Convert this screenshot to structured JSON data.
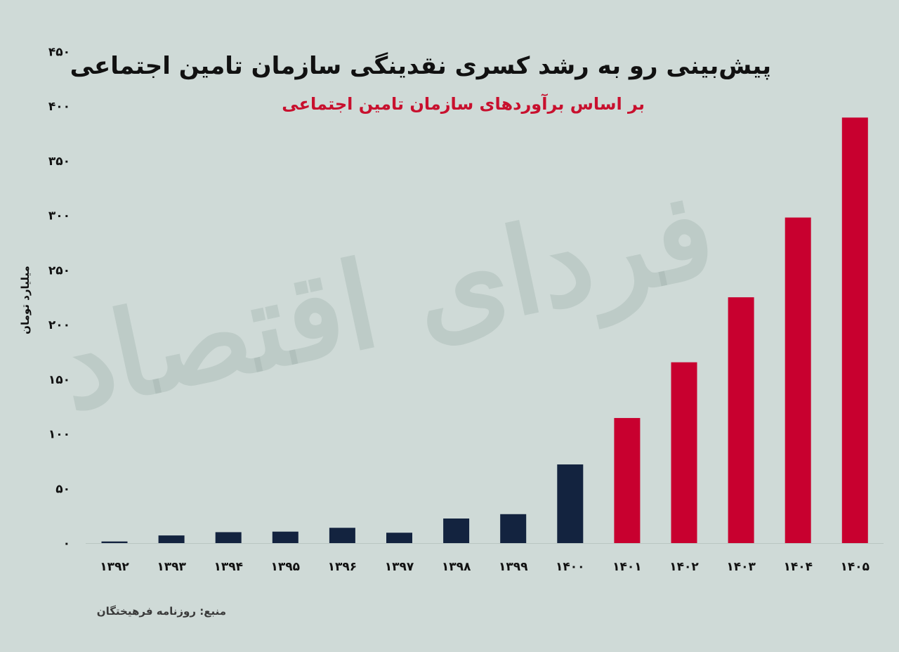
{
  "chart_data": {
    "type": "bar",
    "title": "پیش‌بینی رو به رشد کسری نقدینگی سازمان تامین اجتماعی",
    "subtitle": "بر اساس برآوردهای سازمان تامین اجتماعی",
    "ylabel": "میلیارد تومان",
    "xlabel": "",
    "ylim": [
      0,
      450
    ],
    "yticks": [
      0,
      50,
      100,
      150,
      200,
      250,
      300,
      350,
      400,
      450
    ],
    "ytick_labels": [
      "۰",
      "۵۰",
      "۱۰۰",
      "۱۵۰",
      "۲۰۰",
      "۲۵۰",
      "۳۰۰",
      "۳۵۰",
      "۴۰۰",
      "۴۵۰"
    ],
    "categories": [
      "۱۳۹۲",
      "۱۳۹۳",
      "۱۳۹۴",
      "۱۳۹۵",
      "۱۳۹۶",
      "۱۳۹۷",
      "۱۳۹۸",
      "۱۳۹۹",
      "۱۴۰۰",
      "۱۴۰۱",
      "۱۴۰۲",
      "۱۴۰۳",
      "۱۴۰۴",
      "۱۴۰۵"
    ],
    "values": [
      1.5,
      7,
      10,
      10.5,
      14,
      9.5,
      22.5,
      26.5,
      72,
      114.5,
      165.5,
      225,
      298,
      389.5
    ],
    "bar_colors": [
      "#13233f",
      "#13233f",
      "#13233f",
      "#13233f",
      "#13233f",
      "#13233f",
      "#13233f",
      "#13233f",
      "#13233f",
      "#c8002f",
      "#c8002f",
      "#c8002f",
      "#c8002f",
      "#c8002f"
    ],
    "grid": false,
    "legend": "none"
  },
  "source_label": "منبع: روزنامه فرهیختگان",
  "watermark_text": "فردای اقتصاد",
  "colors": {
    "background": "#cfdad7",
    "actual": "#13233f",
    "forecast": "#c8002f",
    "subtitle": "#c8102e"
  }
}
